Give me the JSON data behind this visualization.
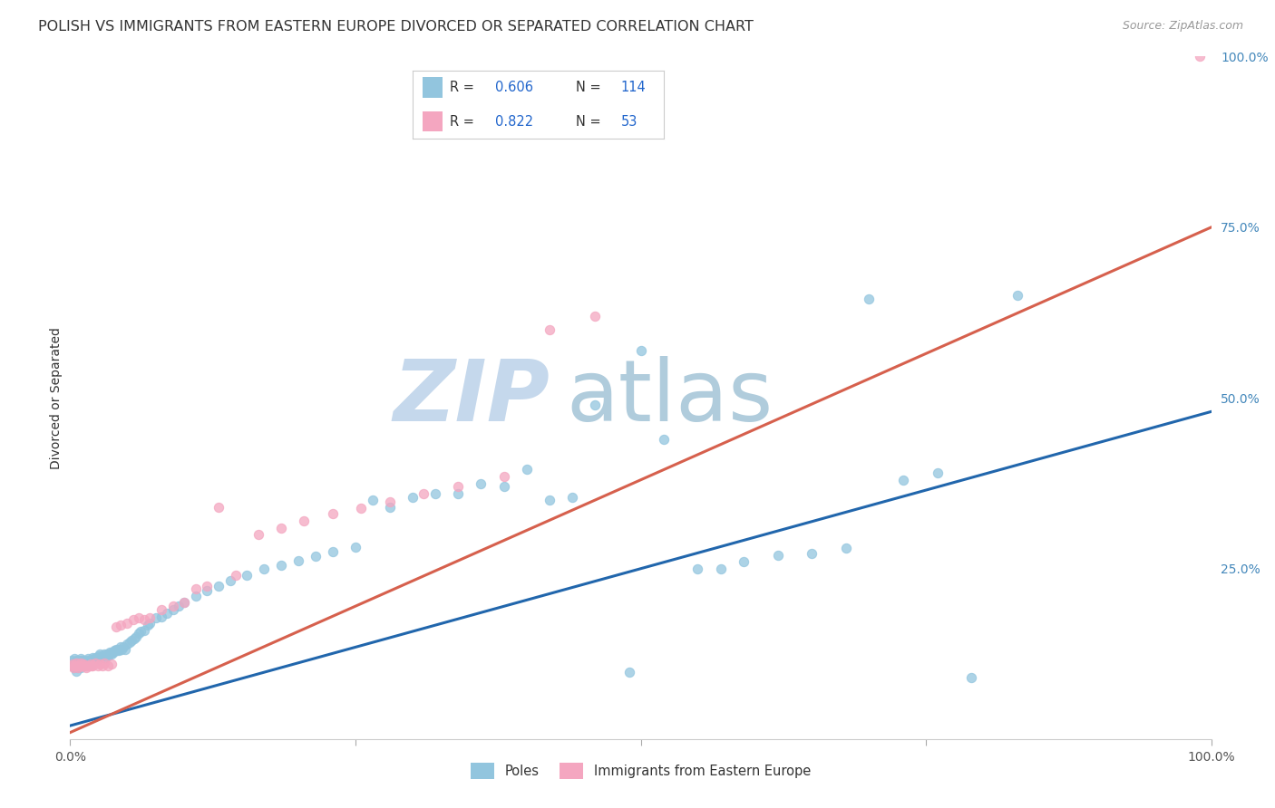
{
  "title": "POLISH VS IMMIGRANTS FROM EASTERN EUROPE DIVORCED OR SEPARATED CORRELATION CHART",
  "source_text": "Source: ZipAtlas.com",
  "ylabel": "Divorced or Separated",
  "blue_color": "#92c5de",
  "pink_color": "#f4a6c0",
  "blue_line_color": "#2166ac",
  "pink_line_color": "#d6604d",
  "watermark_zip": "ZIP",
  "watermark_atlas": "atlas",
  "watermark_color_zip": "#c8d8ee",
  "watermark_color_atlas": "#a8c4d8",
  "title_fontsize": 11.5,
  "grid_color": "#d8d8d8",
  "background_color": "#ffffff",
  "blue_scatter_x": [
    0.001,
    0.002,
    0.003,
    0.003,
    0.004,
    0.004,
    0.005,
    0.005,
    0.005,
    0.006,
    0.006,
    0.007,
    0.007,
    0.008,
    0.008,
    0.009,
    0.009,
    0.01,
    0.01,
    0.01,
    0.011,
    0.012,
    0.012,
    0.013,
    0.013,
    0.014,
    0.015,
    0.015,
    0.016,
    0.016,
    0.017,
    0.018,
    0.019,
    0.02,
    0.02,
    0.021,
    0.022,
    0.022,
    0.023,
    0.024,
    0.025,
    0.026,
    0.027,
    0.028,
    0.03,
    0.031,
    0.032,
    0.033,
    0.034,
    0.035,
    0.036,
    0.037,
    0.038,
    0.039,
    0.04,
    0.041,
    0.042,
    0.043,
    0.044,
    0.045,
    0.047,
    0.048,
    0.05,
    0.052,
    0.054,
    0.056,
    0.058,
    0.06,
    0.062,
    0.065,
    0.068,
    0.07,
    0.075,
    0.08,
    0.085,
    0.09,
    0.095,
    0.1,
    0.11,
    0.12,
    0.13,
    0.14,
    0.155,
    0.17,
    0.185,
    0.2,
    0.215,
    0.23,
    0.25,
    0.265,
    0.28,
    0.3,
    0.32,
    0.34,
    0.36,
    0.38,
    0.4,
    0.42,
    0.44,
    0.46,
    0.49,
    0.5,
    0.52,
    0.55,
    0.57,
    0.59,
    0.62,
    0.65,
    0.68,
    0.7,
    0.73,
    0.76,
    0.79,
    0.83
  ],
  "blue_scatter_y": [
    0.115,
    0.11,
    0.108,
    0.112,
    0.105,
    0.118,
    0.1,
    0.115,
    0.108,
    0.112,
    0.105,
    0.11,
    0.115,
    0.108,
    0.112,
    0.105,
    0.118,
    0.11,
    0.115,
    0.108,
    0.112,
    0.11,
    0.115,
    0.108,
    0.112,
    0.11,
    0.115,
    0.108,
    0.112,
    0.118,
    0.11,
    0.115,
    0.112,
    0.115,
    0.12,
    0.115,
    0.12,
    0.118,
    0.115,
    0.12,
    0.122,
    0.125,
    0.12,
    0.122,
    0.125,
    0.12,
    0.125,
    0.122,
    0.125,
    0.128,
    0.125,
    0.128,
    0.128,
    0.13,
    0.132,
    0.13,
    0.132,
    0.13,
    0.135,
    0.132,
    0.135,
    0.132,
    0.14,
    0.142,
    0.145,
    0.148,
    0.15,
    0.155,
    0.158,
    0.16,
    0.168,
    0.17,
    0.178,
    0.18,
    0.185,
    0.19,
    0.195,
    0.2,
    0.21,
    0.218,
    0.225,
    0.232,
    0.24,
    0.25,
    0.255,
    0.262,
    0.268,
    0.275,
    0.282,
    0.35,
    0.34,
    0.355,
    0.36,
    0.36,
    0.375,
    0.37,
    0.395,
    0.35,
    0.355,
    0.49,
    0.098,
    0.57,
    0.44,
    0.25,
    0.25,
    0.26,
    0.27,
    0.272,
    0.28,
    0.645,
    0.38,
    0.39,
    0.09,
    0.65
  ],
  "pink_scatter_x": [
    0.001,
    0.002,
    0.003,
    0.004,
    0.005,
    0.006,
    0.007,
    0.008,
    0.009,
    0.01,
    0.011,
    0.012,
    0.013,
    0.014,
    0.015,
    0.016,
    0.017,
    0.018,
    0.019,
    0.02,
    0.022,
    0.024,
    0.026,
    0.028,
    0.03,
    0.033,
    0.036,
    0.04,
    0.044,
    0.05,
    0.055,
    0.06,
    0.065,
    0.07,
    0.08,
    0.09,
    0.1,
    0.11,
    0.12,
    0.13,
    0.145,
    0.165,
    0.185,
    0.205,
    0.23,
    0.255,
    0.28,
    0.31,
    0.34,
    0.38,
    0.42,
    0.46,
    0.99
  ],
  "pink_scatter_y": [
    0.108,
    0.11,
    0.105,
    0.108,
    0.112,
    0.108,
    0.105,
    0.108,
    0.112,
    0.108,
    0.108,
    0.11,
    0.108,
    0.105,
    0.108,
    0.108,
    0.108,
    0.11,
    0.108,
    0.108,
    0.112,
    0.108,
    0.11,
    0.108,
    0.112,
    0.108,
    0.11,
    0.165,
    0.168,
    0.17,
    0.175,
    0.178,
    0.175,
    0.178,
    0.19,
    0.195,
    0.2,
    0.22,
    0.225,
    0.34,
    0.24,
    0.3,
    0.31,
    0.32,
    0.33,
    0.338,
    0.348,
    0.36,
    0.37,
    0.385,
    0.6,
    0.62,
    1.0
  ],
  "blue_regression": {
    "slope": 0.46,
    "intercept": 0.02
  },
  "pink_regression": {
    "slope": 0.74,
    "intercept": 0.01
  }
}
